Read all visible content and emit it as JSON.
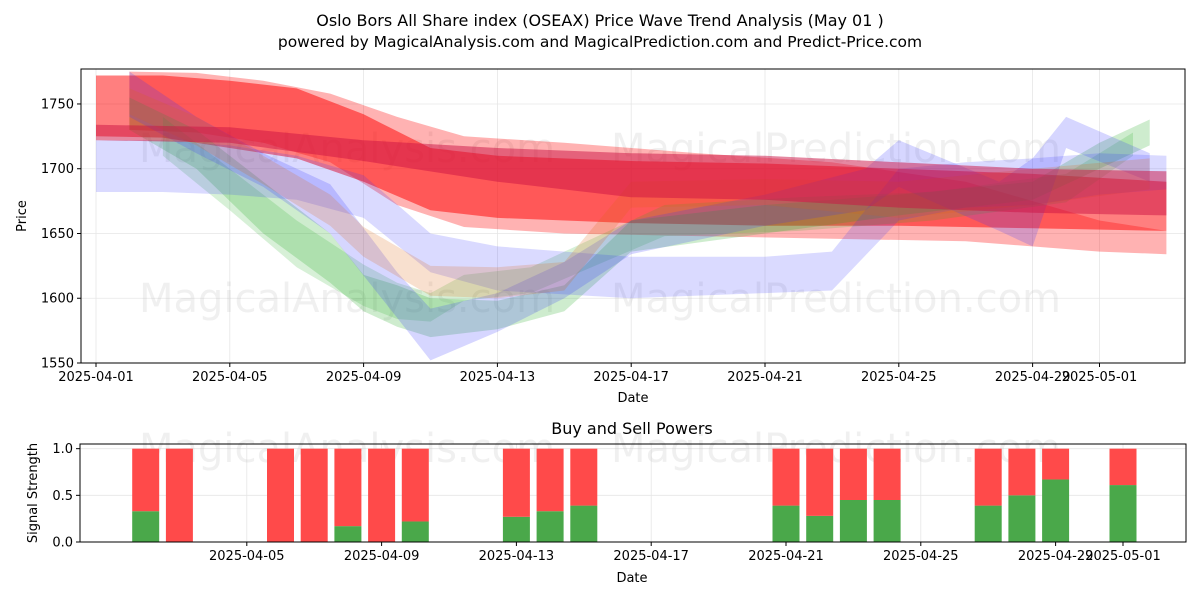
{
  "title": "Oslo Bors All Share index (OSEAX) Price Wave Trend Analysis (May 01 )",
  "subtitle": "powered by MagicalAnalysis.com and MagicalPrediction.com and Predict-Price.com",
  "watermarks": [
    "MagicalAnalysis.com",
    "MagicalPrediction.com"
  ],
  "colors": {
    "red": "#ff0000",
    "green": "#22aa22",
    "blue": "#3333ff",
    "crimson": "#cc1144",
    "orange": "#dd6611",
    "buy": "#4aa84a",
    "sell": "#ff4a4a"
  },
  "chart_data": [
    {
      "type": "area",
      "name": "price-wave-chart",
      "xlabel": "Date",
      "ylabel": "Price",
      "ylim": [
        1550,
        1777
      ],
      "grid": true,
      "x_ticks": [
        "2025-04-01",
        "2025-04-05",
        "2025-04-09",
        "2025-04-13",
        "2025-04-17",
        "2025-04-21",
        "2025-04-25",
        "2025-04-29",
        "2025-05-01"
      ],
      "x_tick_days": [
        0,
        4,
        8,
        12,
        16,
        20,
        24,
        28,
        30
      ],
      "y_ticks": [
        1550,
        1600,
        1650,
        1700,
        1750
      ],
      "series": [
        {
          "name": "red-wave-1",
          "color": "red",
          "opacity": 0.5,
          "days": [
            0,
            2,
            4,
            6,
            8,
            10,
            12,
            16,
            20,
            24,
            28,
            32
          ],
          "upper": [
            1772,
            1772,
            1768,
            1762,
            1742,
            1716,
            1710,
            1706,
            1704,
            1700,
            1696,
            1690
          ],
          "lower": [
            1725,
            1724,
            1716,
            1708,
            1690,
            1668,
            1662,
            1658,
            1656,
            1656,
            1654,
            1652
          ]
        },
        {
          "name": "red-wave-2",
          "color": "red",
          "opacity": 0.3,
          "days": [
            1,
            3,
            5,
            7,
            9,
            11,
            14,
            18,
            22,
            26,
            30,
            32
          ],
          "upper": [
            1775,
            1774,
            1768,
            1758,
            1740,
            1725,
            1720,
            1712,
            1705,
            1690,
            1660,
            1652
          ],
          "lower": [
            1730,
            1728,
            1720,
            1705,
            1672,
            1655,
            1650,
            1648,
            1646,
            1644,
            1636,
            1634
          ]
        },
        {
          "name": "green-wave-1",
          "color": "green",
          "opacity": 0.22,
          "days": [
            1,
            3,
            5,
            7,
            8,
            9,
            10,
            12,
            14,
            16,
            20,
            24,
            28,
            30,
            31.5
          ],
          "upper": [
            1755,
            1730,
            1690,
            1650,
            1618,
            1610,
            1600,
            1598,
            1610,
            1660,
            1672,
            1680,
            1690,
            1720,
            1738
          ],
          "lower": [
            1730,
            1700,
            1650,
            1612,
            1590,
            1578,
            1570,
            1576,
            1590,
            1636,
            1650,
            1664,
            1676,
            1700,
            1718
          ]
        },
        {
          "name": "green-wave-2",
          "color": "green",
          "opacity": 0.18,
          "days": [
            2,
            4,
            6,
            8,
            9,
            10,
            11,
            13,
            15,
            17,
            21,
            25,
            29,
            31
          ],
          "upper": [
            1740,
            1700,
            1660,
            1626,
            1612,
            1604,
            1618,
            1624,
            1648,
            1672,
            1678,
            1682,
            1696,
            1728
          ],
          "lower": [
            1710,
            1668,
            1624,
            1594,
            1584,
            1582,
            1598,
            1604,
            1626,
            1648,
            1652,
            1660,
            1674,
            1710
          ]
        },
        {
          "name": "blue-wave-1",
          "color": "blue",
          "opacity": 0.18,
          "days": [
            0,
            2,
            4,
            6,
            8,
            10,
            12,
            16,
            20,
            22,
            24,
            26,
            28,
            30,
            32
          ],
          "upper": [
            1722,
            1722,
            1718,
            1710,
            1695,
            1650,
            1640,
            1632,
            1632,
            1636,
            1700,
            1705,
            1708,
            1712,
            1710
          ],
          "lower": [
            1682,
            1682,
            1680,
            1676,
            1662,
            1620,
            1606,
            1600,
            1604,
            1606,
            1660,
            1670,
            1672,
            1680,
            1684
          ]
        },
        {
          "name": "blue-wave-2",
          "color": "blue",
          "opacity": 0.2,
          "days": [
            1,
            3,
            5,
            7,
            9,
            10,
            12,
            14,
            16,
            20,
            23,
            24,
            27,
            28,
            29,
            31.5
          ],
          "upper": [
            1775,
            1740,
            1712,
            1688,
            1620,
            1592,
            1604,
            1628,
            1660,
            1680,
            1700,
            1722,
            1690,
            1708,
            1740,
            1712
          ],
          "lower": [
            1740,
            1712,
            1686,
            1650,
            1585,
            1552,
            1574,
            1600,
            1634,
            1656,
            1668,
            1686,
            1652,
            1640,
            1716,
            1690
          ]
        },
        {
          "name": "orange-wave",
          "color": "orange",
          "opacity": 0.2,
          "days": [
            1,
            3,
            5,
            7,
            8,
            10,
            12,
            14,
            16,
            20,
            24,
            28,
            31.5
          ],
          "upper": [
            1762,
            1740,
            1710,
            1680,
            1655,
            1625,
            1624,
            1628,
            1690,
            1692,
            1690,
            1700,
            1708
          ],
          "lower": [
            1742,
            1718,
            1688,
            1656,
            1632,
            1602,
            1600,
            1606,
            1670,
            1672,
            1662,
            1672,
            1684
          ]
        },
        {
          "name": "crimson-wave",
          "color": "crimson",
          "opacity": 0.5,
          "days": [
            0,
            4,
            8,
            12,
            16,
            20,
            24,
            28,
            32
          ],
          "upper": [
            1734,
            1732,
            1722,
            1716,
            1712,
            1710,
            1705,
            1700,
            1698
          ],
          "lower": [
            1722,
            1720,
            1706,
            1690,
            1678,
            1676,
            1670,
            1666,
            1664
          ]
        }
      ]
    },
    {
      "type": "bar",
      "name": "buy-sell-chart",
      "title": "Buy and Sell Powers",
      "xlabel": "Date",
      "ylabel": "Signal Strength",
      "ylim": [
        0,
        1.05
      ],
      "y_ticks": [
        "0.0",
        "0.5",
        "1.0"
      ],
      "x_ticks": [
        "2025-04-05",
        "2025-04-09",
        "2025-04-13",
        "2025-04-17",
        "2025-04-21",
        "2025-04-25",
        "2025-04-29",
        "2025-05-01"
      ],
      "x_tick_days": [
        4,
        8,
        12,
        16,
        20,
        24,
        28,
        30
      ],
      "series": [
        {
          "name": "Buy",
          "color": "buy",
          "days": [
            1,
            2,
            5,
            6,
            7,
            8,
            9,
            12,
            13,
            14,
            20,
            21,
            22,
            23,
            26,
            27,
            28,
            30
          ],
          "values": [
            0.33,
            0,
            0,
            0,
            0.17,
            0,
            0.22,
            0.27,
            0.33,
            0.39,
            0.39,
            0.28,
            0.45,
            0.45,
            0.39,
            0.5,
            0.67,
            0.61
          ]
        },
        {
          "name": "Sell",
          "color": "sell",
          "days": [
            1,
            2,
            5,
            6,
            7,
            8,
            9,
            12,
            13,
            14,
            20,
            21,
            22,
            23,
            26,
            27,
            28,
            30
          ],
          "values": [
            0.67,
            1,
            1,
            1,
            0.83,
            1,
            0.78,
            0.73,
            0.67,
            0.61,
            0.61,
            0.72,
            0.55,
            0.55,
            0.61,
            0.5,
            0.33,
            0.39
          ]
        }
      ]
    }
  ]
}
